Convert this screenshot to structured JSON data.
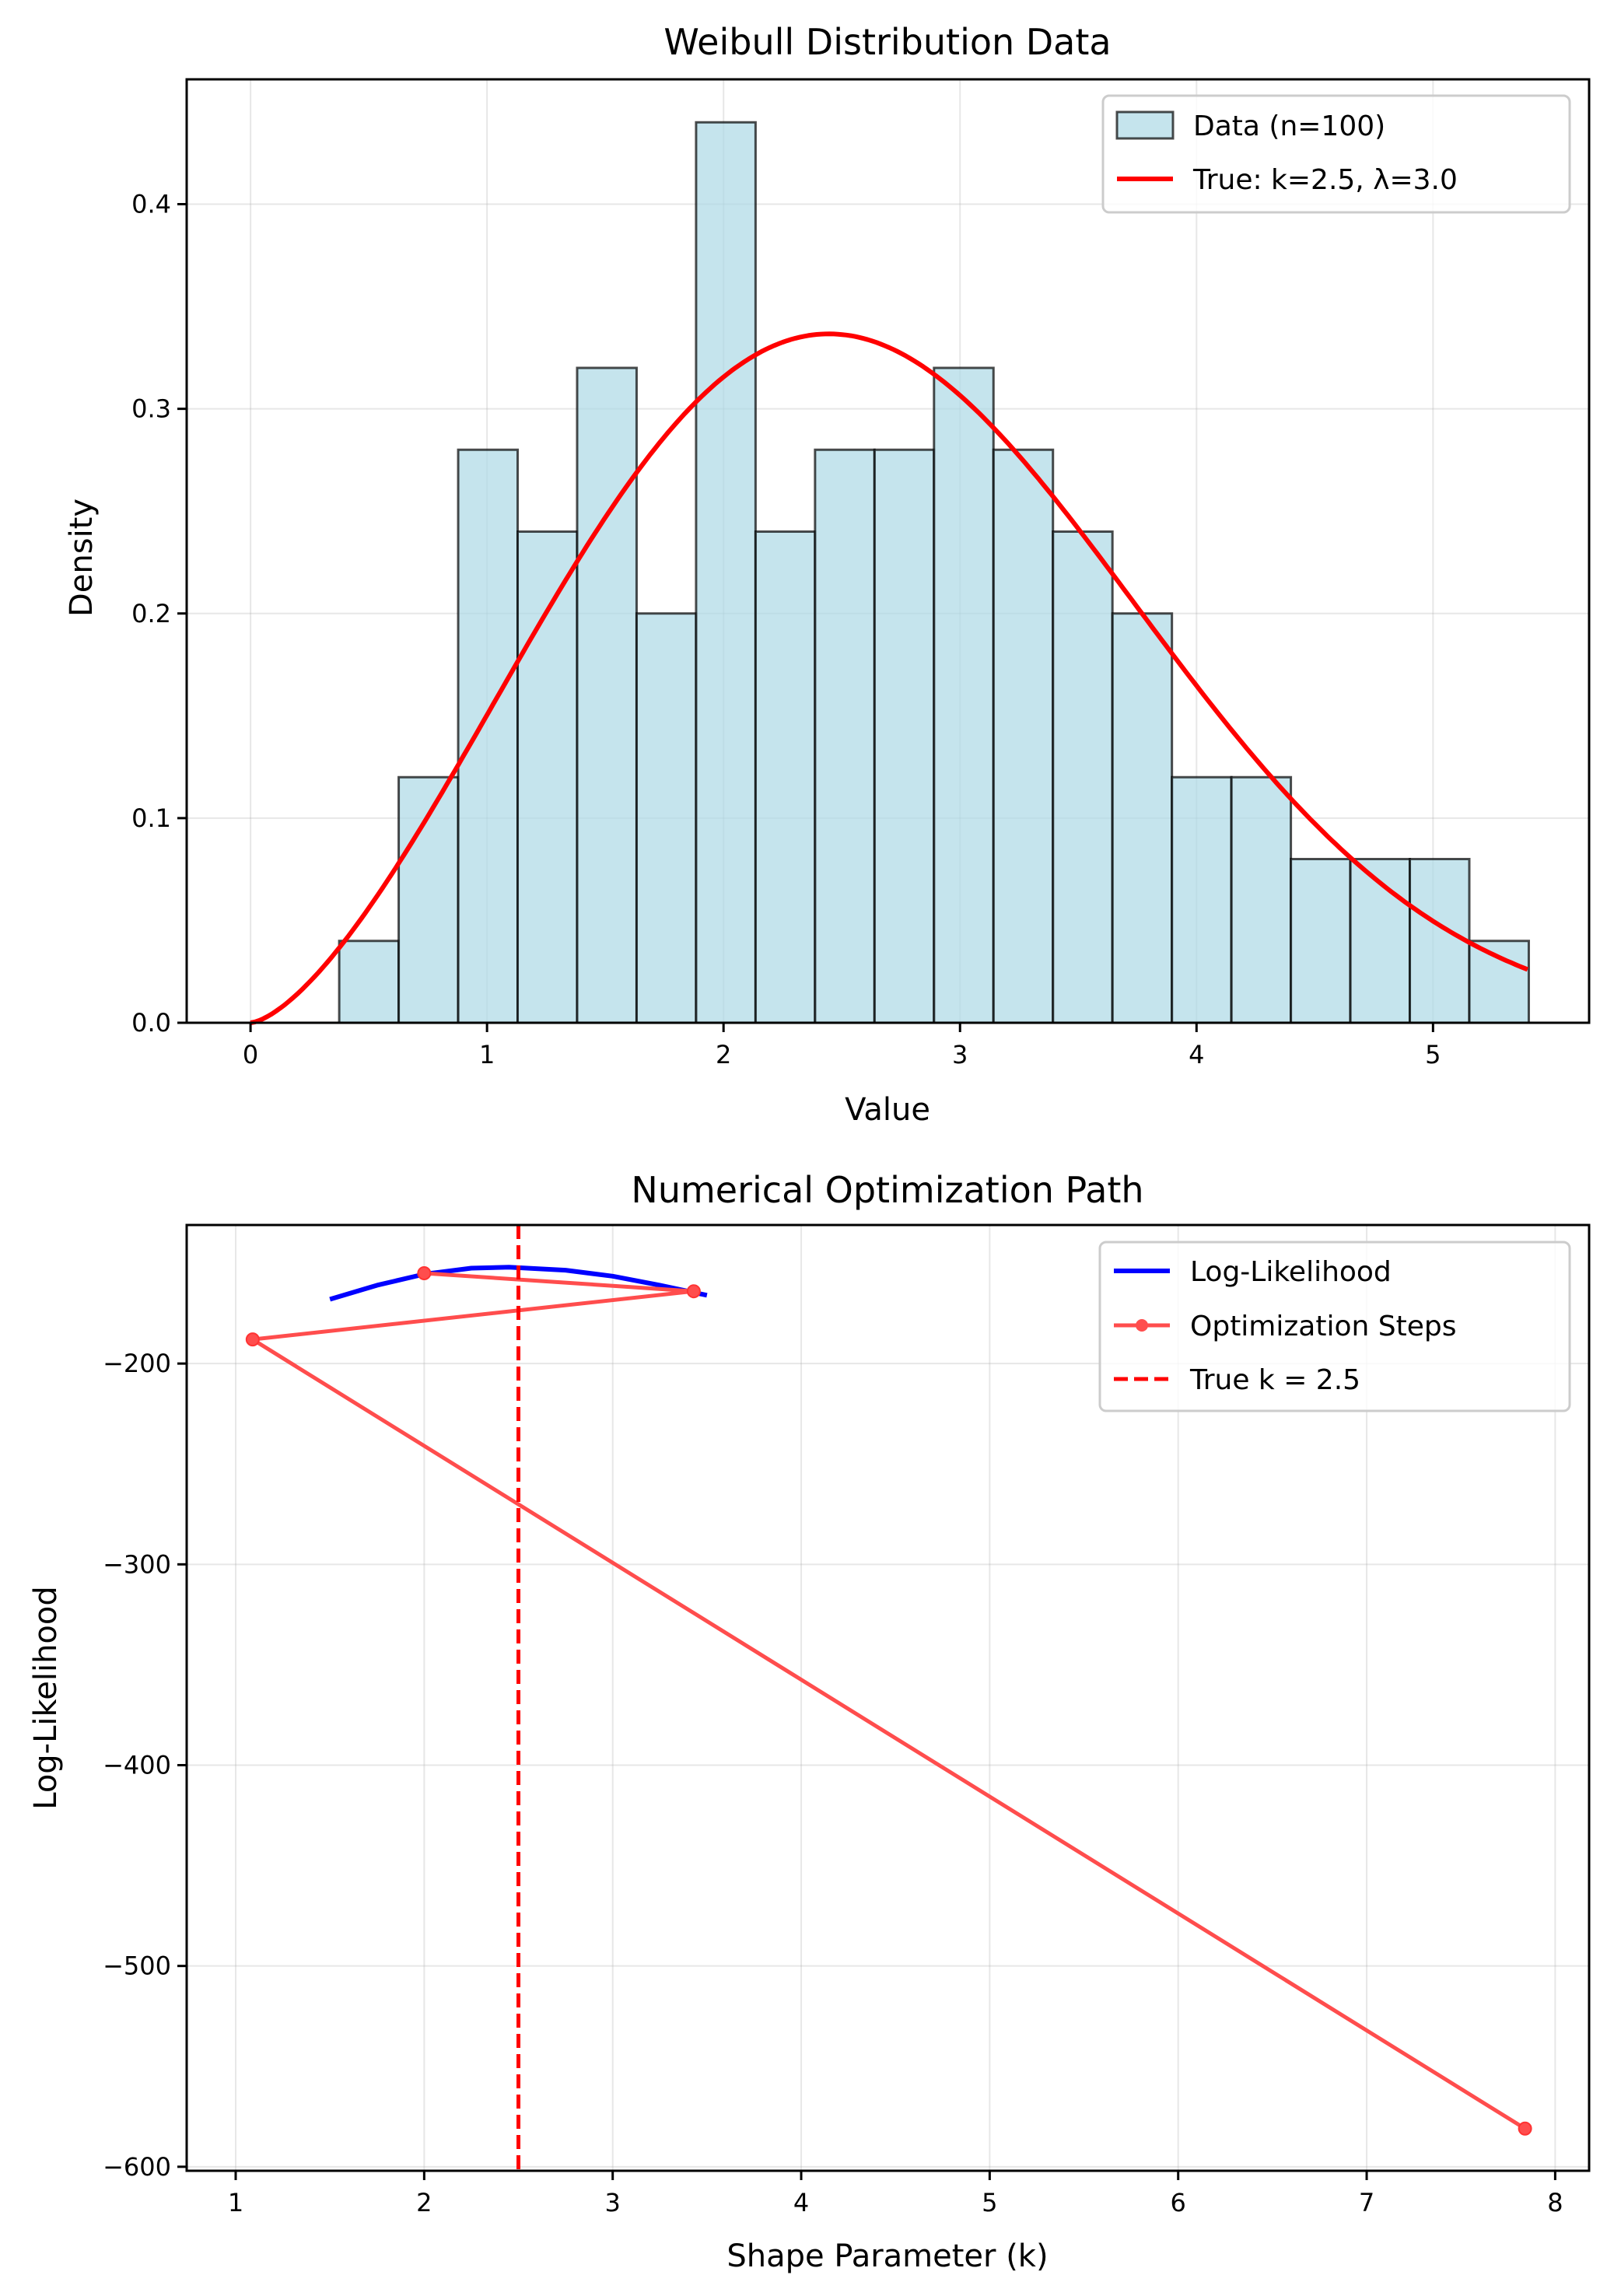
{
  "chart_data": [
    {
      "type": "bar",
      "title": "Weibull Distribution Data",
      "xlabel": "Value",
      "ylabel": "Density",
      "xlim": [
        -0.27,
        5.66
      ],
      "ylim": [
        0,
        0.461
      ],
      "xticks": [
        0,
        1,
        2,
        3,
        4,
        5
      ],
      "xtick_labels": [
        "0",
        "1",
        "2",
        "3",
        "4",
        "5"
      ],
      "yticks": [
        0,
        0.1,
        0.2,
        0.3,
        0.4
      ],
      "ytick_labels": [
        "0.0",
        "0.1",
        "0.2",
        "0.3",
        "0.4"
      ],
      "grid": true,
      "legend_position": "top-right",
      "histogram": {
        "name": "Data (n=100)",
        "bin_start": 0.375,
        "bin_width": 0.2515,
        "values": [
          0.04,
          0.12,
          0.28,
          0.24,
          0.32,
          0.2,
          0.44,
          0.24,
          0.28,
          0.28,
          0.32,
          0.28,
          0.24,
          0.2,
          0.12,
          0.12,
          0.08,
          0.08,
          0.08,
          0.04
        ],
        "fill": "#add8e6",
        "edge": "#000000"
      },
      "curve": {
        "name": "True: k=2.5, λ=3.0",
        "type": "line",
        "distribution": "weibull",
        "k": 2.5,
        "lambda": 3.0,
        "x_range": [
          0,
          5.4
        ],
        "color": "#ff0000"
      }
    },
    {
      "type": "line",
      "title": "Numerical Optimization Path",
      "xlabel": "Shape Parameter (k)",
      "ylabel": "Log-Likelihood",
      "xlim": [
        0.74,
        8.18
      ],
      "ylim": [
        -602,
        -131
      ],
      "xticks": [
        1,
        2,
        3,
        4,
        5,
        6,
        7,
        8
      ],
      "xtick_labels": [
        "1",
        "2",
        "3",
        "4",
        "5",
        "6",
        "7",
        "8"
      ],
      "yticks": [
        -200,
        -300,
        -400,
        -500,
        -600
      ],
      "ytick_labels": [
        "−200",
        "−300",
        "−400",
        "−500",
        "−600"
      ],
      "grid": true,
      "legend_position": "top-right",
      "series": [
        {
          "name": "Log-Likelihood",
          "color": "#0000ff",
          "x": [
            1.5,
            1.75,
            2.0,
            2.25,
            2.45,
            2.75,
            3.0,
            3.25,
            3.5
          ],
          "y": [
            -168,
            -161,
            -155.5,
            -152.5,
            -152,
            -153.5,
            -156.5,
            -161,
            -166
          ]
        },
        {
          "name": "Optimization Steps",
          "color": "#ff4d4d",
          "markers": true,
          "x": [
            2.0,
            3.43,
            1.09,
            7.84
          ],
          "y": [
            -155,
            -164,
            -188,
            -581
          ]
        }
      ],
      "vline": {
        "name": "True k = 2.5",
        "x": 2.5,
        "color": "#ff0000",
        "style": "dashed"
      }
    }
  ]
}
